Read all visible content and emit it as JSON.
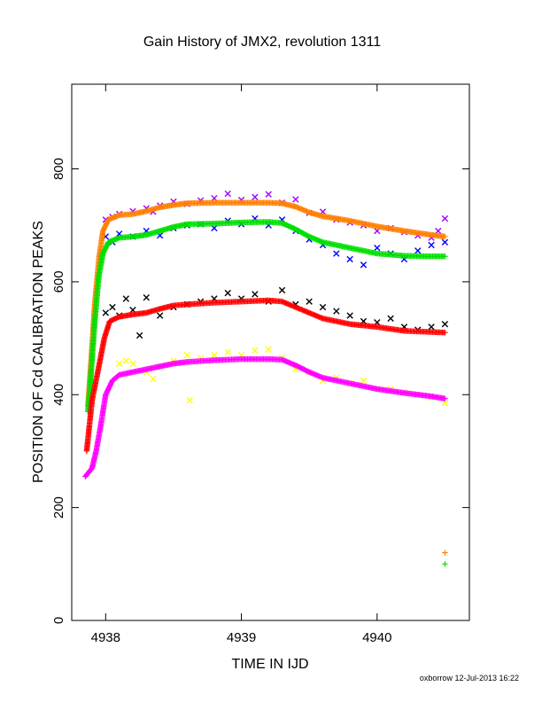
{
  "chart_data": {
    "type": "scatter",
    "title": "Gain History of JMX2, revolution 1311",
    "xlabel": "TIME IN IJD",
    "ylabel": "POSITION OF Cd CALIBRATION PEAKS",
    "xlim": [
      4937.75,
      4940.68
    ],
    "ylim": [
      0,
      950
    ],
    "xticks": [
      4938,
      4939,
      4940
    ],
    "yticks": [
      0,
      200,
      400,
      600,
      800
    ],
    "grid": false,
    "legend": "none",
    "footer": "oxborrow 12-Jul-2013 16:22",
    "series": [
      {
        "color": "#ff8000",
        "marker": "plus",
        "style": "dense",
        "points": [
          [
            4937.87,
            380
          ],
          [
            4937.89,
            450
          ],
          [
            4937.92,
            560
          ],
          [
            4937.95,
            640
          ],
          [
            4937.98,
            690
          ],
          [
            4938.02,
            710
          ],
          [
            4938.1,
            718
          ],
          [
            4938.2,
            720
          ],
          [
            4938.3,
            725
          ],
          [
            4938.4,
            732
          ],
          [
            4938.5,
            736
          ],
          [
            4938.6,
            739
          ],
          [
            4938.8,
            740
          ],
          [
            4939.0,
            740
          ],
          [
            4939.2,
            740
          ],
          [
            4939.3,
            739
          ],
          [
            4939.4,
            733
          ],
          [
            4939.5,
            723
          ],
          [
            4939.6,
            716
          ],
          [
            4939.8,
            708
          ],
          [
            4940.0,
            698
          ],
          [
            4940.2,
            690
          ],
          [
            4940.4,
            683
          ],
          [
            4940.5,
            680
          ]
        ],
        "isolated": [
          [
            4940.5,
            120
          ]
        ]
      },
      {
        "color": "#00e000",
        "marker": "plus",
        "style": "dense",
        "points": [
          [
            4937.87,
            370
          ],
          [
            4937.89,
            430
          ],
          [
            4937.92,
            530
          ],
          [
            4937.95,
            610
          ],
          [
            4937.98,
            650
          ],
          [
            4938.02,
            670
          ],
          [
            4938.1,
            678
          ],
          [
            4938.2,
            680
          ],
          [
            4938.3,
            683
          ],
          [
            4938.4,
            690
          ],
          [
            4938.5,
            697
          ],
          [
            4938.6,
            702
          ],
          [
            4938.8,
            703
          ],
          [
            4939.0,
            705
          ],
          [
            4939.2,
            706
          ],
          [
            4939.3,
            704
          ],
          [
            4939.4,
            693
          ],
          [
            4939.5,
            680
          ],
          [
            4939.6,
            670
          ],
          [
            4939.8,
            660
          ],
          [
            4940.0,
            650
          ],
          [
            4940.2,
            646
          ],
          [
            4940.4,
            645
          ],
          [
            4940.5,
            645
          ]
        ],
        "isolated": [
          [
            4940.5,
            100
          ]
        ]
      },
      {
        "color": "#ff0000",
        "marker": "plus",
        "style": "dense",
        "points": [
          [
            4937.86,
            300
          ],
          [
            4937.9,
            390
          ],
          [
            4937.95,
            450
          ],
          [
            4937.99,
            500
          ],
          [
            4938.03,
            530
          ],
          [
            4938.1,
            538
          ],
          [
            4938.2,
            542
          ],
          [
            4938.3,
            545
          ],
          [
            4938.4,
            552
          ],
          [
            4938.5,
            558
          ],
          [
            4938.6,
            560
          ],
          [
            4938.8,
            563
          ],
          [
            4939.0,
            565
          ],
          [
            4939.2,
            567
          ],
          [
            4939.3,
            565
          ],
          [
            4939.4,
            555
          ],
          [
            4939.5,
            545
          ],
          [
            4939.6,
            535
          ],
          [
            4939.8,
            525
          ],
          [
            4940.0,
            520
          ],
          [
            4940.2,
            513
          ],
          [
            4940.4,
            511
          ],
          [
            4940.5,
            510
          ]
        ],
        "isolated": []
      },
      {
        "color": "#ff00ff",
        "marker": "plus",
        "style": "dense",
        "points": [
          [
            4937.85,
            255
          ],
          [
            4937.9,
            270
          ],
          [
            4937.93,
            300
          ],
          [
            4937.96,
            340
          ],
          [
            4938.0,
            400
          ],
          [
            4938.05,
            425
          ],
          [
            4938.1,
            435
          ],
          [
            4938.2,
            440
          ],
          [
            4938.3,
            445
          ],
          [
            4938.4,
            450
          ],
          [
            4938.5,
            455
          ],
          [
            4938.6,
            458
          ],
          [
            4938.8,
            461
          ],
          [
            4939.0,
            463
          ],
          [
            4939.2,
            463
          ],
          [
            4939.3,
            462
          ],
          [
            4939.4,
            452
          ],
          [
            4939.5,
            440
          ],
          [
            4939.6,
            430
          ],
          [
            4939.8,
            420
          ],
          [
            4940.0,
            410
          ],
          [
            4940.2,
            403
          ],
          [
            4940.4,
            397
          ],
          [
            4940.5,
            393
          ]
        ],
        "isolated": []
      },
      {
        "color": "#a000ff",
        "marker": "x",
        "style": "scatter",
        "points": [
          [
            4938.0,
            710
          ],
          [
            4938.05,
            715
          ],
          [
            4938.1,
            720
          ],
          [
            4938.2,
            725
          ],
          [
            4938.3,
            730
          ],
          [
            4938.35,
            724
          ],
          [
            4938.4,
            735
          ],
          [
            4938.5,
            742
          ],
          [
            4938.6,
            738
          ],
          [
            4938.7,
            744
          ],
          [
            4938.8,
            748
          ],
          [
            4938.9,
            756
          ],
          [
            4939.0,
            745
          ],
          [
            4939.1,
            750
          ],
          [
            4939.2,
            755
          ],
          [
            4939.3,
            740
          ],
          [
            4939.4,
            746
          ],
          [
            4939.5,
            722
          ],
          [
            4939.6,
            724
          ],
          [
            4939.7,
            710
          ],
          [
            4939.8,
            705
          ],
          [
            4939.9,
            700
          ],
          [
            4940.0,
            690
          ],
          [
            4940.1,
            695
          ],
          [
            4940.2,
            688
          ],
          [
            4940.3,
            682
          ],
          [
            4940.4,
            678
          ],
          [
            4940.45,
            690
          ],
          [
            4940.5,
            712
          ]
        ]
      },
      {
        "color": "#0000ff",
        "marker": "x",
        "style": "scatter",
        "points": [
          [
            4938.0,
            680
          ],
          [
            4938.05,
            670
          ],
          [
            4938.1,
            685
          ],
          [
            4938.2,
            680
          ],
          [
            4938.3,
            690
          ],
          [
            4938.4,
            682
          ],
          [
            4938.5,
            695
          ],
          [
            4938.6,
            700
          ],
          [
            4938.7,
            702
          ],
          [
            4938.8,
            695
          ],
          [
            4938.9,
            708
          ],
          [
            4939.0,
            702
          ],
          [
            4939.1,
            712
          ],
          [
            4939.2,
            700
          ],
          [
            4939.3,
            710
          ],
          [
            4939.4,
            690
          ],
          [
            4939.5,
            675
          ],
          [
            4939.6,
            665
          ],
          [
            4939.7,
            650
          ],
          [
            4939.8,
            640
          ],
          [
            4939.9,
            630
          ],
          [
            4940.0,
            660
          ],
          [
            4940.1,
            650
          ],
          [
            4940.2,
            640
          ],
          [
            4940.3,
            655
          ],
          [
            4940.4,
            665
          ],
          [
            4940.5,
            670
          ]
        ]
      },
      {
        "color": "#000000",
        "marker": "x",
        "style": "scatter",
        "points": [
          [
            4938.0,
            545
          ],
          [
            4938.05,
            555
          ],
          [
            4938.1,
            540
          ],
          [
            4938.15,
            570
          ],
          [
            4938.2,
            550
          ],
          [
            4938.25,
            505
          ],
          [
            4938.3,
            572
          ],
          [
            4938.4,
            540
          ],
          [
            4938.5,
            555
          ],
          [
            4938.6,
            560
          ],
          [
            4938.7,
            565
          ],
          [
            4938.8,
            570
          ],
          [
            4938.9,
            580
          ],
          [
            4939.0,
            570
          ],
          [
            4939.1,
            578
          ],
          [
            4939.2,
            565
          ],
          [
            4939.3,
            585
          ],
          [
            4939.4,
            560
          ],
          [
            4939.5,
            565
          ],
          [
            4939.6,
            555
          ],
          [
            4939.7,
            548
          ],
          [
            4939.8,
            540
          ],
          [
            4939.9,
            530
          ],
          [
            4940.0,
            528
          ],
          [
            4940.1,
            535
          ],
          [
            4940.2,
            520
          ],
          [
            4940.3,
            515
          ],
          [
            4940.4,
            520
          ],
          [
            4940.5,
            525
          ]
        ]
      },
      {
        "color": "#ffff00",
        "marker": "x",
        "style": "scatter",
        "points": [
          [
            4938.1,
            455
          ],
          [
            4938.15,
            460
          ],
          [
            4938.2,
            455
          ],
          [
            4938.3,
            440
          ],
          [
            4938.35,
            428
          ],
          [
            4938.4,
            450
          ],
          [
            4938.5,
            460
          ],
          [
            4938.6,
            470
          ],
          [
            4938.62,
            390
          ],
          [
            4938.7,
            465
          ],
          [
            4938.8,
            470
          ],
          [
            4938.9,
            475
          ],
          [
            4939.0,
            470
          ],
          [
            4939.1,
            478
          ],
          [
            4939.2,
            480
          ],
          [
            4939.3,
            465
          ],
          [
            4939.4,
            445
          ],
          [
            4939.5,
            440
          ],
          [
            4939.6,
            425
          ],
          [
            4939.7,
            430
          ],
          [
            4939.8,
            420
          ],
          [
            4939.9,
            425
          ],
          [
            4940.0,
            410
          ],
          [
            4940.1,
            410
          ],
          [
            4940.2,
            405
          ],
          [
            4940.3,
            400
          ],
          [
            4940.4,
            395
          ],
          [
            4940.5,
            385
          ]
        ]
      }
    ]
  }
}
